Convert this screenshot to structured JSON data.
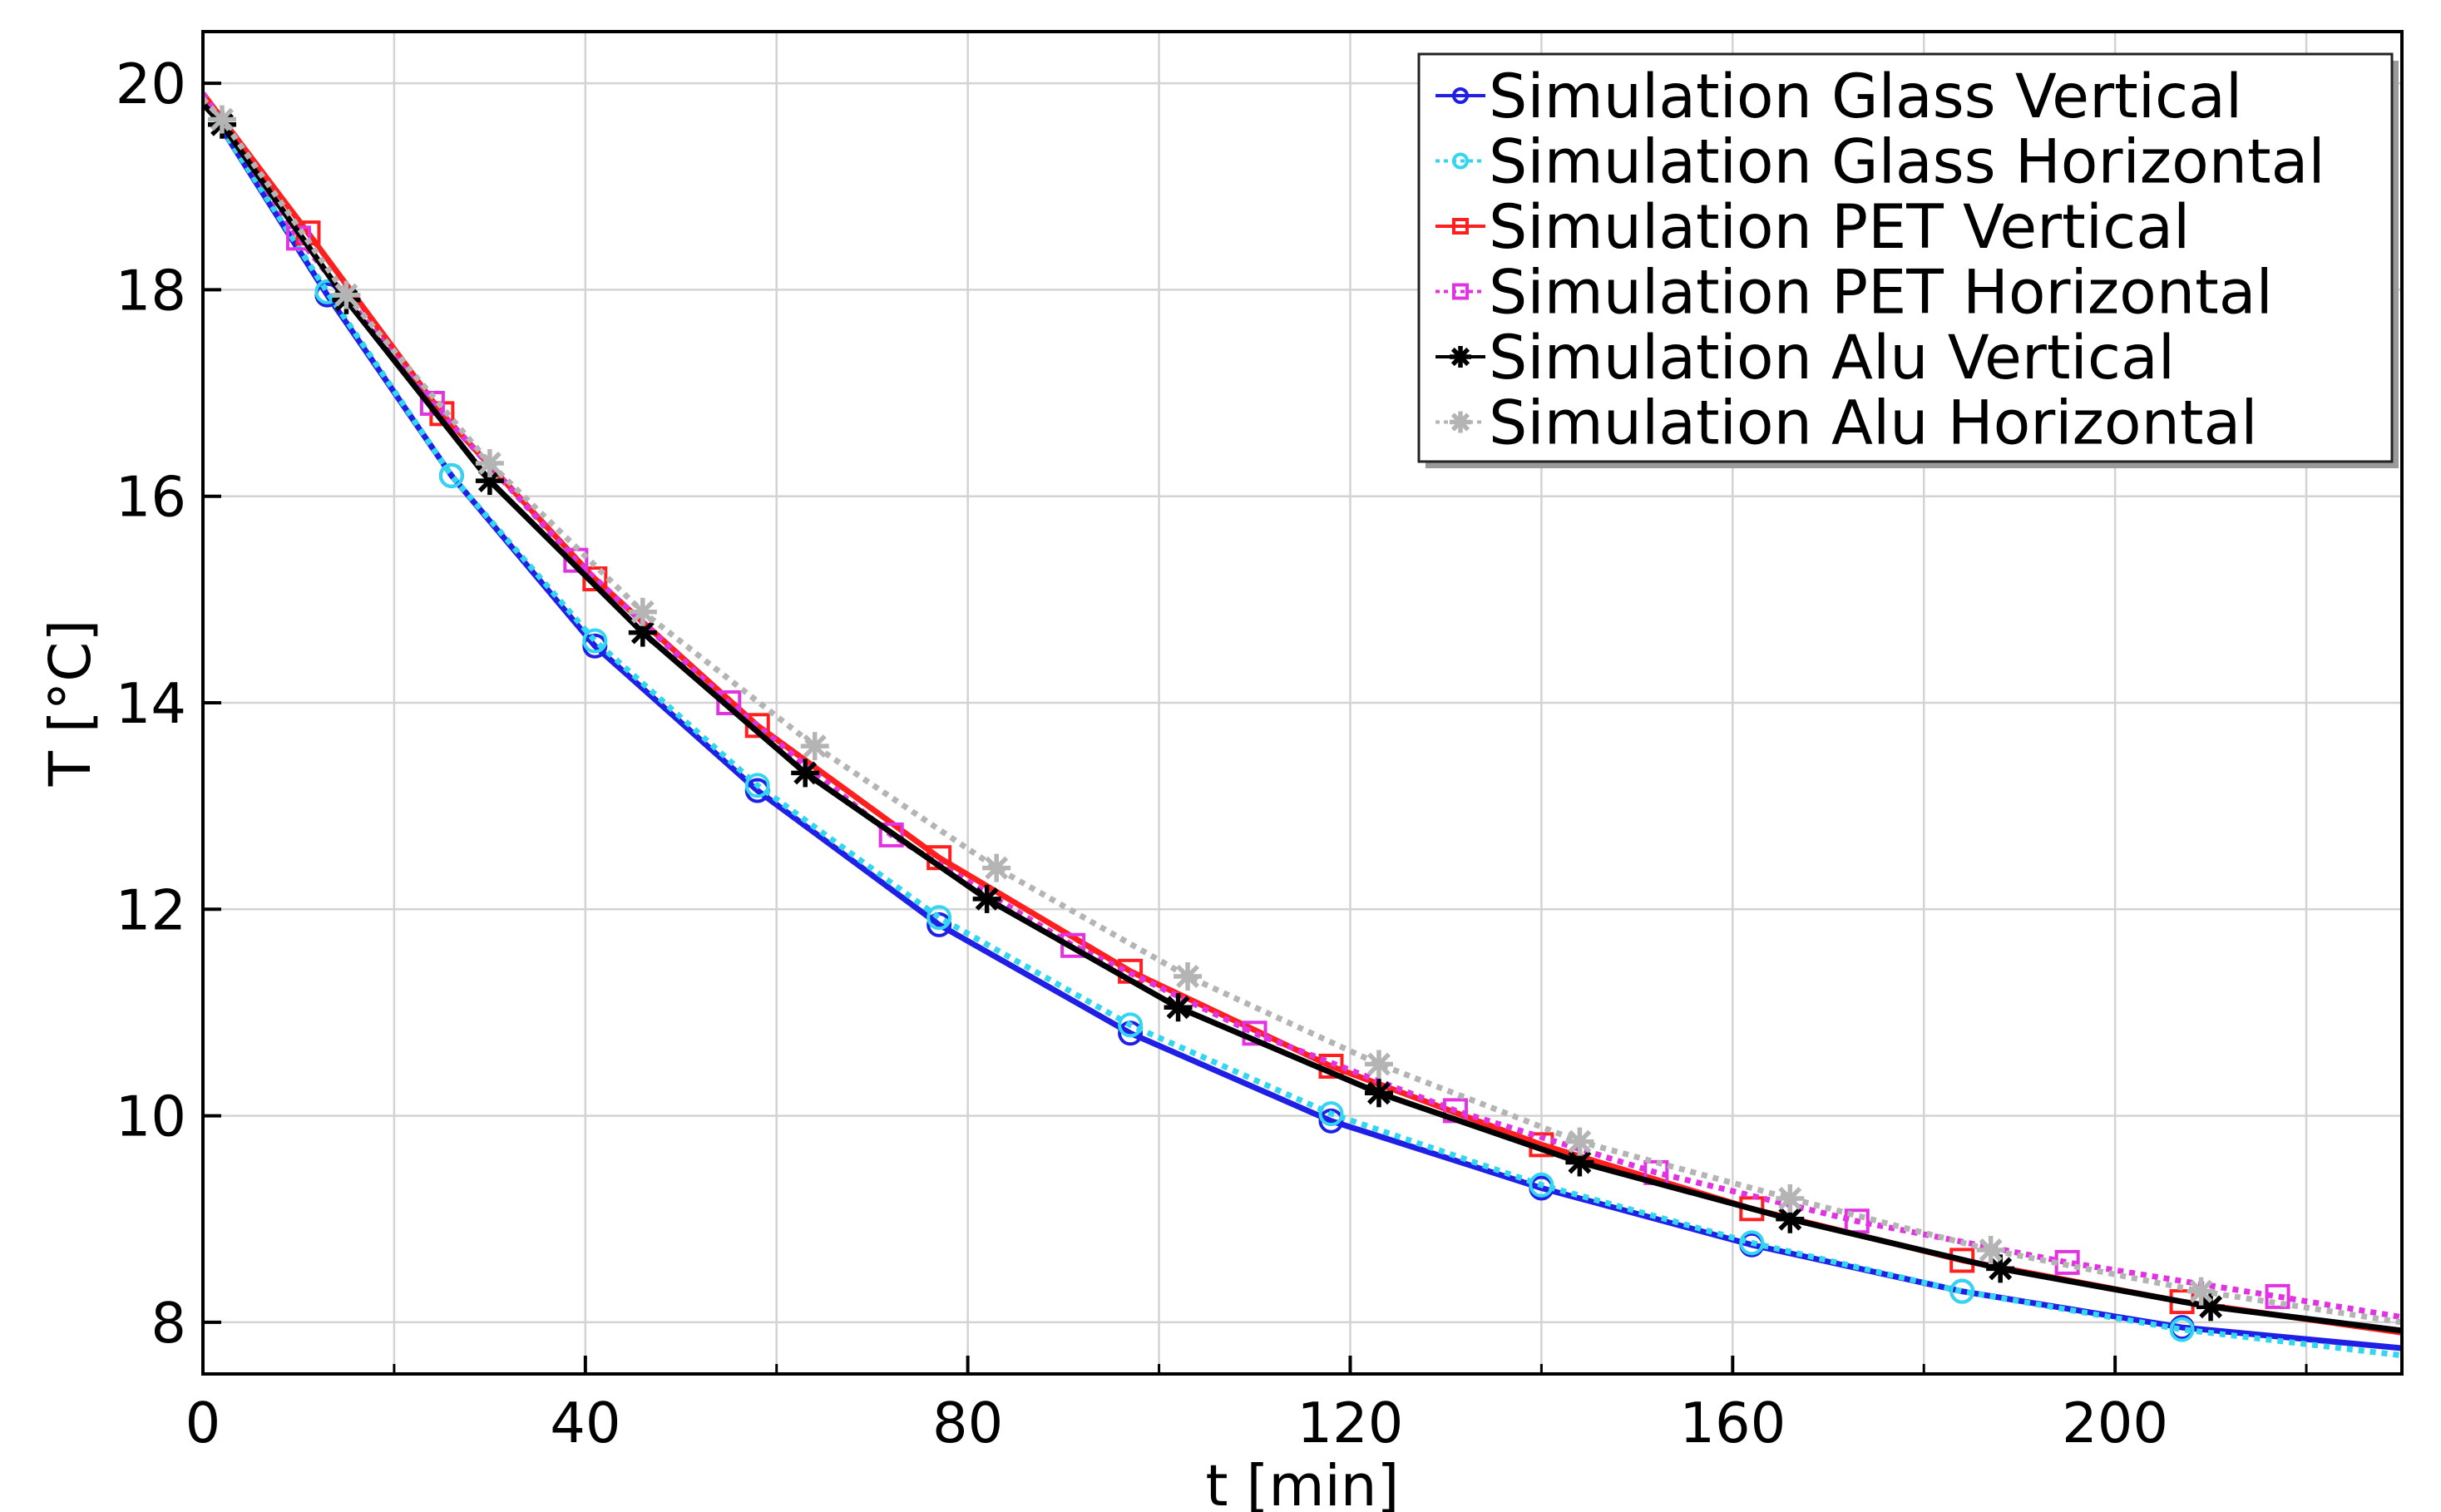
{
  "chart_data": {
    "type": "line",
    "title": "",
    "xlabel": "t [min]",
    "ylabel": "T [°C]",
    "xlim": [
      0,
      230
    ],
    "ylim": [
      7.5,
      20.5
    ],
    "xticks": [
      0,
      40,
      80,
      120,
      160,
      200
    ],
    "yticks": [
      8,
      10,
      12,
      14,
      16,
      18,
      20
    ],
    "xtick_labels": [
      "0",
      "40",
      "80",
      "120",
      "160",
      "200"
    ],
    "ytick_labels": [
      "8",
      "10",
      "12",
      "14",
      "16",
      "18",
      "20"
    ],
    "grid": true,
    "legend_position": "top-right",
    "series": [
      {
        "name": "Simulation Glass Vertical",
        "color": "#1f1fe6",
        "line": "solid",
        "marker": "circle",
        "x": [
          0,
          13,
          26,
          41,
          58,
          77,
          97,
          118,
          140,
          162,
          184,
          207,
          230
        ],
        "y": [
          19.85,
          17.95,
          16.2,
          14.55,
          13.15,
          11.85,
          10.8,
          9.95,
          9.3,
          8.75,
          8.3,
          7.95,
          7.75
        ]
      },
      {
        "name": "Simulation Glass Horizontal",
        "color": "#33d6f0",
        "line": "dotted",
        "marker": "circle",
        "x": [
          0,
          13,
          26,
          41,
          58,
          77,
          97,
          118,
          140,
          162,
          184,
          207,
          230
        ],
        "y": [
          19.85,
          17.98,
          16.2,
          14.6,
          13.2,
          11.92,
          10.88,
          10.02,
          9.33,
          8.77,
          8.3,
          7.93,
          7.68
        ]
      },
      {
        "name": "Simulation PET Vertical",
        "color": "#ff1f1f",
        "line": "solid",
        "marker": "square",
        "x": [
          0,
          11,
          25,
          41,
          58,
          77,
          97,
          118,
          140,
          162,
          184,
          207,
          230
        ],
        "y": [
          19.9,
          18.55,
          16.8,
          15.2,
          13.78,
          12.5,
          11.4,
          10.48,
          9.72,
          9.1,
          8.6,
          8.2,
          7.9
        ]
      },
      {
        "name": "Simulation PET Horizontal",
        "color": "#e233e2",
        "line": "dotted",
        "marker": "square",
        "x": [
          0,
          10,
          24,
          39,
          55,
          72,
          91,
          110,
          131,
          152,
          173,
          195,
          217,
          230
        ],
        "y": [
          19.9,
          18.5,
          16.9,
          15.38,
          14.0,
          12.72,
          11.65,
          10.8,
          10.05,
          9.45,
          8.98,
          8.58,
          8.25,
          8.05
        ]
      },
      {
        "name": "Simulation Alu Vertical",
        "color": "#000000",
        "line": "solid",
        "marker": "star",
        "x": [
          0,
          2,
          15,
          30,
          46,
          63,
          82,
          102,
          123,
          144,
          166,
          188,
          210,
          230
        ],
        "y": [
          19.8,
          19.6,
          17.9,
          16.15,
          14.68,
          13.32,
          12.1,
          11.05,
          10.22,
          9.55,
          9.0,
          8.52,
          8.15,
          7.92
        ]
      },
      {
        "name": "Simulation Alu Horizontal",
        "color": "#b4b4b4",
        "line": "dotted",
        "marker": "star",
        "x": [
          0,
          2,
          15,
          30,
          46,
          64,
          83,
          103,
          123,
          144,
          166,
          187,
          209,
          230
        ],
        "y": [
          19.85,
          19.65,
          17.95,
          16.32,
          14.88,
          13.58,
          12.4,
          11.35,
          10.5,
          9.75,
          9.2,
          8.7,
          8.3,
          8.0
        ]
      }
    ]
  }
}
